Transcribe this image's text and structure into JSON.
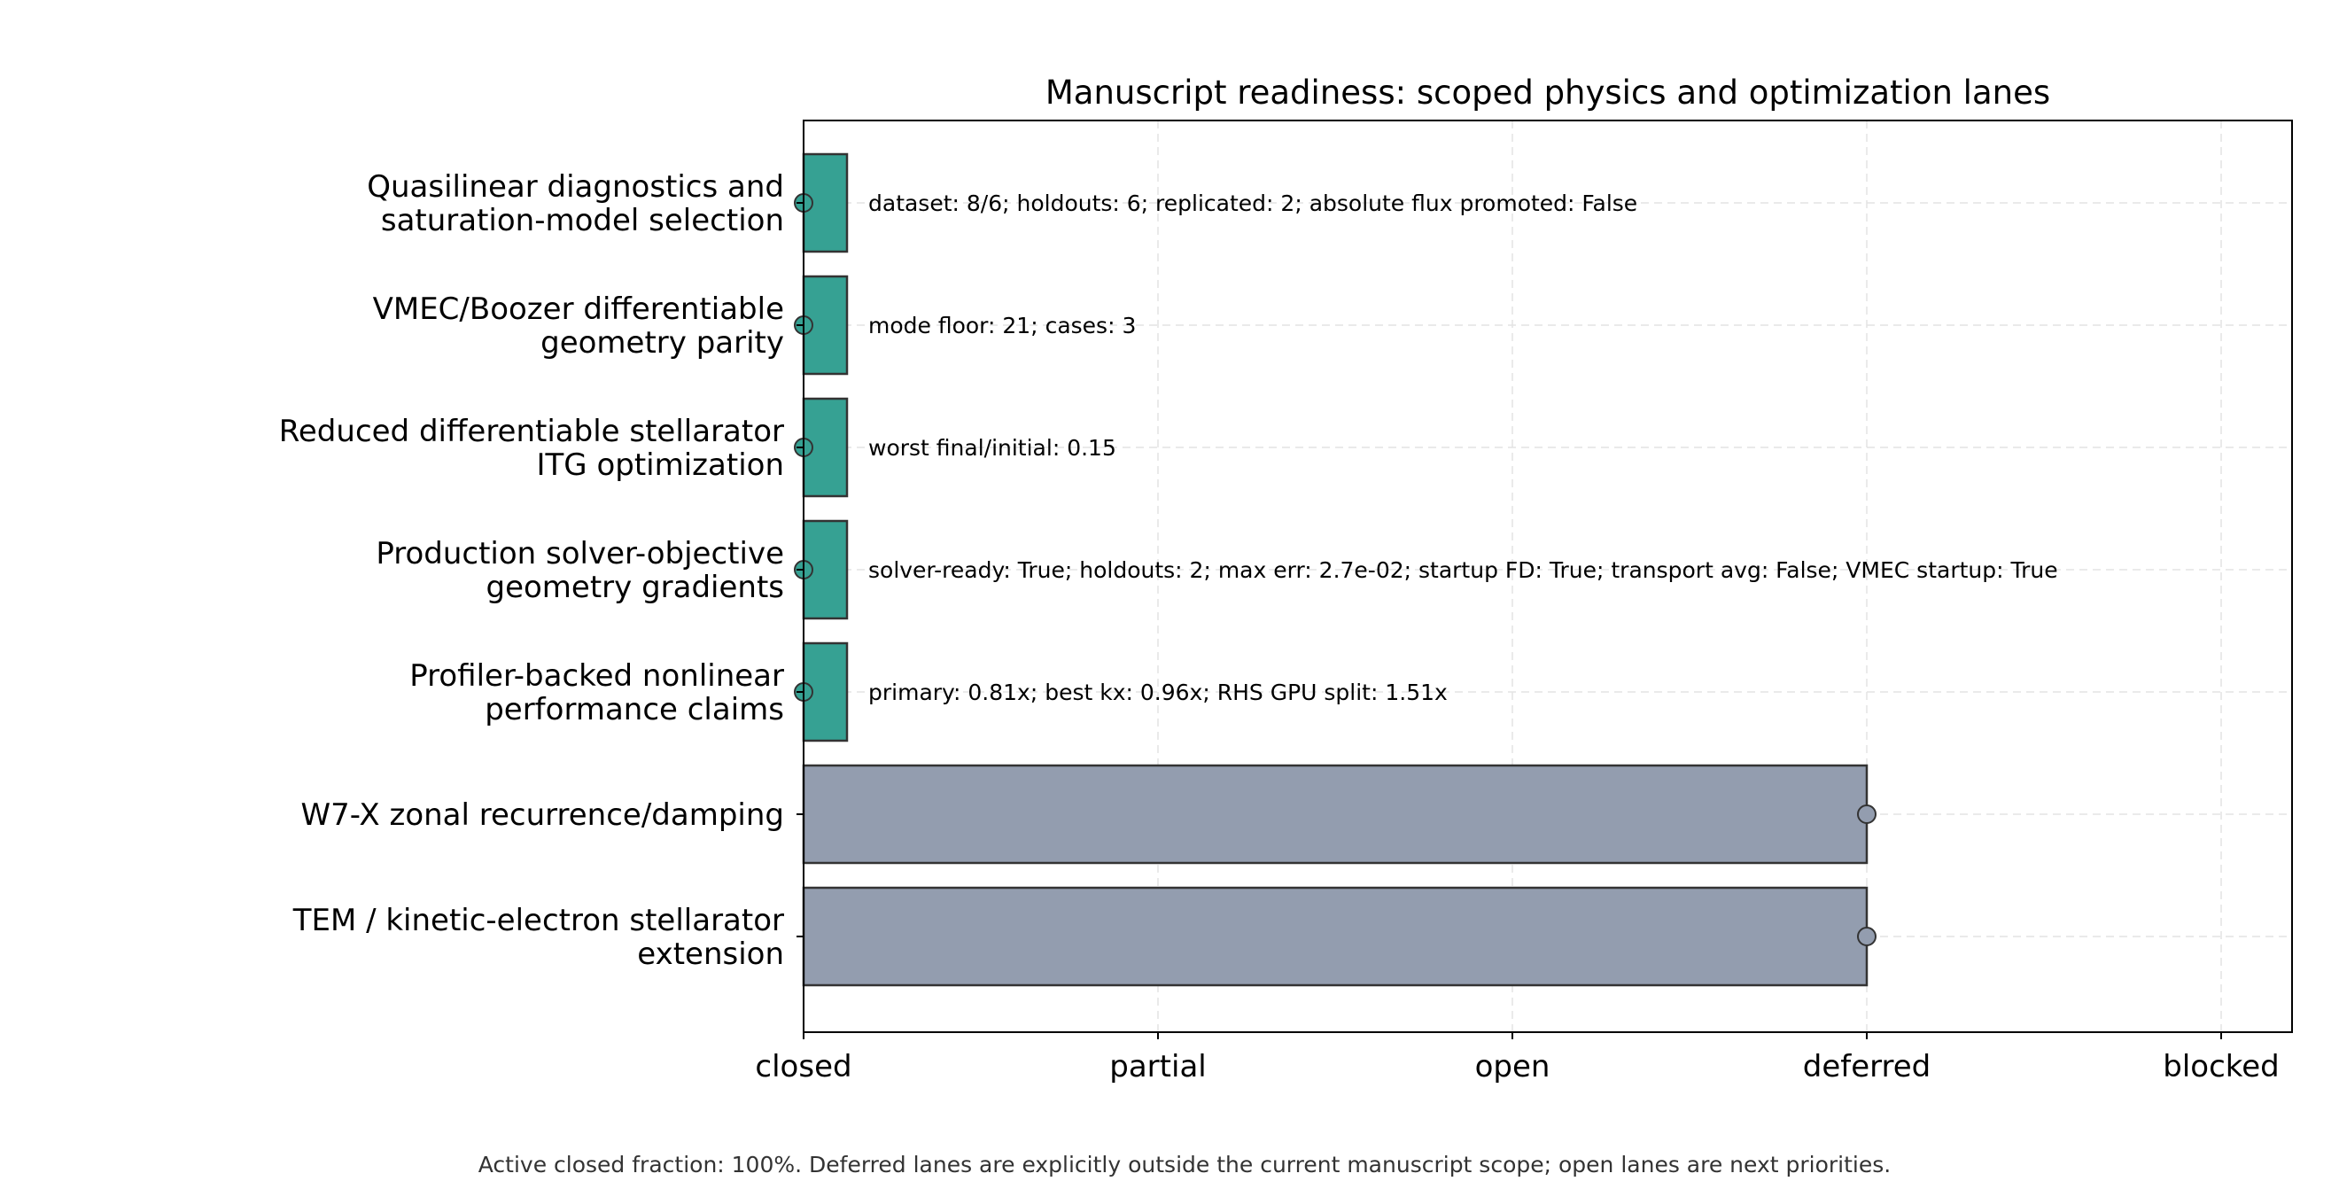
{
  "chart_data": {
    "type": "bar",
    "orientation": "horizontal",
    "title": "Manuscript readiness: scoped physics and optimization lanes",
    "xlabel": "",
    "ylabel": "",
    "x_ticks": [
      "closed",
      "partial",
      "open",
      "deferred",
      "blocked"
    ],
    "xlim": [
      0,
      4.2
    ],
    "grid": true,
    "categories": [
      [
        "Quasilinear diagnostics and",
        "saturation-model selection"
      ],
      [
        "VMEC/Boozer differentiable",
        "geometry parity"
      ],
      [
        "Reduced differentiable stellarator",
        "ITG optimization"
      ],
      [
        "Production solver-objective",
        "geometry gradients"
      ],
      [
        "Profiler-backed nonlinear",
        "performance claims"
      ],
      [
        "W7-X zonal recurrence/damping"
      ],
      [
        "TEM / kinetic-electron stellarator",
        "extension"
      ]
    ],
    "values": [
      0,
      0,
      0,
      0,
      0,
      3,
      3
    ],
    "statuses": [
      "closed",
      "closed",
      "closed",
      "closed",
      "closed",
      "deferred",
      "deferred"
    ],
    "annotations": [
      "dataset: 8/6; holdouts: 6; replicated: 2; absolute flux promoted: False",
      "mode floor: 21; cases: 3",
      "worst final/initial: 0.15",
      "solver-ready: True; holdouts: 2; max err: 2.7e-02; startup FD: True; transport avg: False; VMEC startup: True",
      "primary: 0.81x; best kx: 0.96x; RHS GPU split: 1.51x",
      "",
      ""
    ],
    "colors": {
      "closed": "#36a193",
      "deferred": "#939daf",
      "edge": "#333333",
      "grid": "#e3e3e3"
    }
  },
  "footnote": "Active closed fraction: 100%. Deferred lanes are explicitly outside the current manuscript scope; open lanes are next priorities."
}
